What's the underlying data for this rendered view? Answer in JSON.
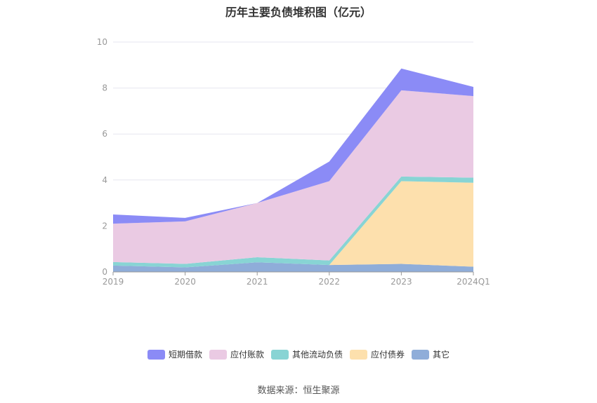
{
  "chart_data": {
    "type": "area",
    "stacked": true,
    "title": "历年主要负债堆积图（亿元）",
    "categories": [
      "2019",
      "2020",
      "2021",
      "2022",
      "2023",
      "2024Q1"
    ],
    "ylim": [
      0,
      10
    ],
    "yticks": [
      0,
      2,
      4,
      6,
      8,
      10
    ],
    "grid": true,
    "legend_position": "bottom",
    "series": [
      {
        "name": "其它",
        "color": "#8fadd9",
        "values": [
          0.28,
          0.2,
          0.42,
          0.3,
          0.35,
          0.23
        ]
      },
      {
        "name": "应付债券",
        "color": "#fde0ad",
        "values": [
          0.0,
          0.0,
          0.0,
          0.0,
          3.6,
          3.65
        ]
      },
      {
        "name": "其他流动负债",
        "color": "#88d4d4",
        "values": [
          0.15,
          0.15,
          0.22,
          0.2,
          0.2,
          0.22
        ]
      },
      {
        "name": "应付账款",
        "color": "#eacae3",
        "values": [
          1.67,
          1.85,
          2.36,
          3.45,
          3.75,
          3.55
        ]
      },
      {
        "name": "短期借款",
        "color": "#8b8bf6",
        "values": [
          0.4,
          0.15,
          0.0,
          0.85,
          0.95,
          0.4
        ]
      }
    ],
    "legend_order": [
      "短期借款",
      "应付账款",
      "其他流动负债",
      "应付债券",
      "其它"
    ]
  },
  "source_text": "数据来源：恒生聚源"
}
